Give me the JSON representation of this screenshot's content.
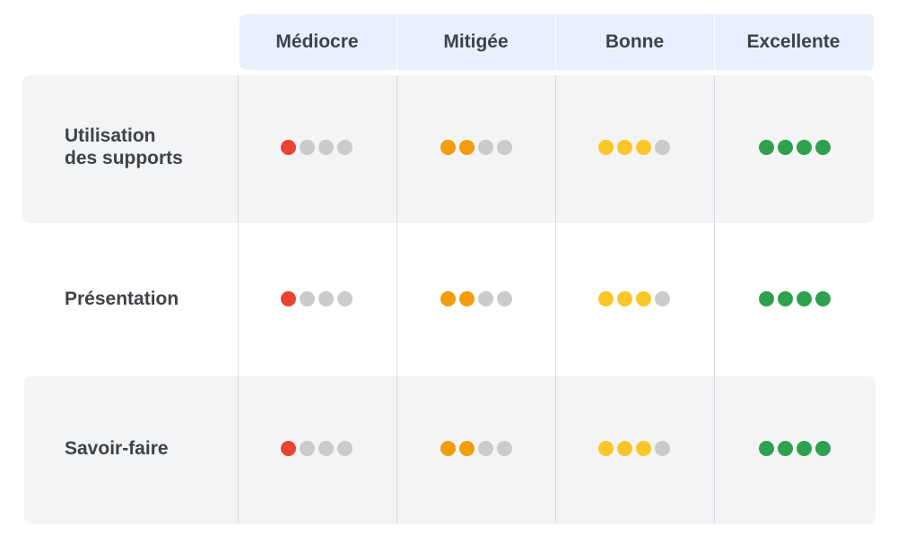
{
  "columns": [
    {
      "label": "Médiocre",
      "level": 1,
      "color": "#e84335"
    },
    {
      "label": "Mitigée",
      "level": 2,
      "color": "#f39c0c"
    },
    {
      "label": "Bonne",
      "level": 3,
      "color": "#fbc629"
    },
    {
      "label": "Excellente",
      "level": 4,
      "color": "#2ea04f"
    }
  ],
  "empty_dot_color": "#cbcbcb",
  "dots_per_cell": 4,
  "rows": [
    {
      "label": "Utilisation\ndes supports"
    },
    {
      "label": "Présentation"
    },
    {
      "label": "Savoir-faire"
    }
  ]
}
